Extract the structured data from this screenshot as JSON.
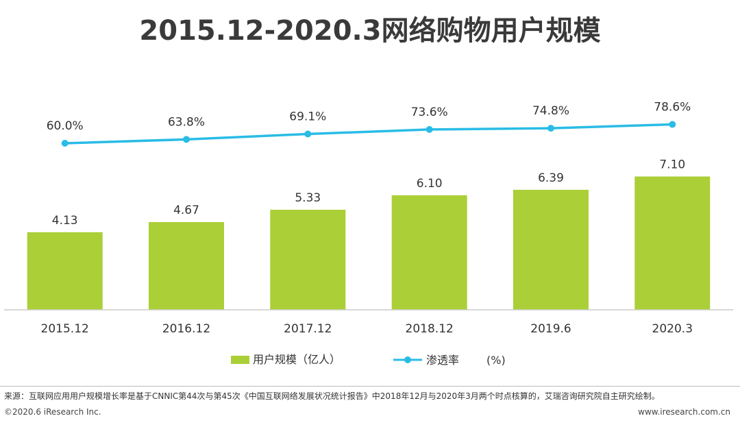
{
  "chart_data": {
    "type": "bar",
    "title": "2015.12-2020.3网络购物用户规模",
    "categories": [
      "2015.12",
      "2016.12",
      "2017.12",
      "2018.12",
      "2019.6",
      "2020.3"
    ],
    "series": [
      {
        "name": "用户规模（亿人）",
        "type": "bar",
        "values": [
          4.13,
          4.67,
          5.33,
          6.1,
          6.39,
          7.1
        ],
        "labels": [
          "4.13",
          "4.67",
          "5.33",
          "6.10",
          "6.39",
          "7.10"
        ],
        "color": "#abcf37"
      },
      {
        "name": "渗透率（%）",
        "type": "line",
        "values": [
          60.0,
          63.8,
          69.1,
          73.6,
          74.8,
          78.6
        ],
        "labels": [
          "60.0%",
          "63.8%",
          "69.1%",
          "73.6%",
          "74.8%",
          "78.6%"
        ],
        "color": "#29bce6"
      }
    ],
    "legend_position": "bottom-center",
    "grid": false
  },
  "legend": {
    "bar_label": "用户规模（亿人）",
    "line_label": "渗透率",
    "line_unit": "(%)"
  },
  "footer": {
    "note": "来源：互联网应用用户规模增长率是基于CNNIC第44次与第45次《中国互联网络发展状况统计报告》中2018年12月与2020年3月两个时点核算的，艾瑞咨询研究院自主研究绘制。",
    "copyright": "©2020.6 iResearch Inc.",
    "website": "www.iresearch.com.cn"
  }
}
